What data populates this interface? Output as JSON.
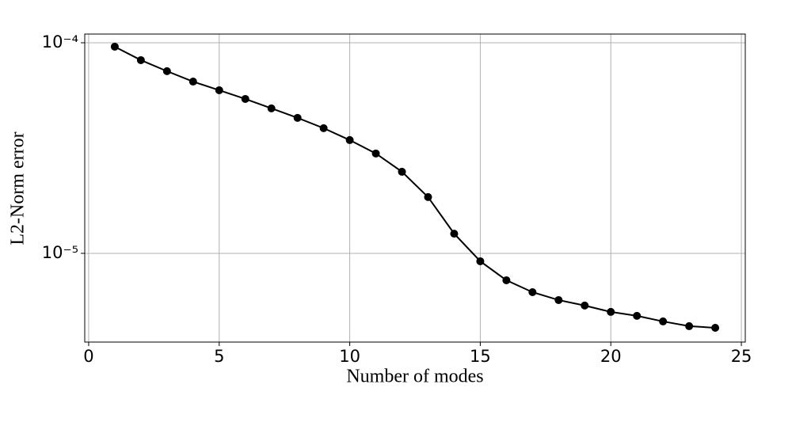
{
  "chart_data": {
    "type": "line",
    "xlabel": "Number of modes",
    "ylabel": "L2-Norm error",
    "x": [
      1,
      2,
      3,
      4,
      5,
      6,
      7,
      8,
      9,
      10,
      11,
      12,
      13,
      14,
      15,
      16,
      17,
      18,
      19,
      20,
      21,
      22,
      23,
      24
    ],
    "series": [
      {
        "color": "#000000",
        "values": [
          9.58e-05,
          8.27e-05,
          7.33e-05,
          6.54e-05,
          5.95e-05,
          5.41e-05,
          4.88e-05,
          4.4e-05,
          3.93e-05,
          3.45e-05,
          2.98e-05,
          2.44e-05,
          1.85e-05,
          1.24e-05,
          9.17e-06,
          7.45e-06,
          6.54e-06,
          6e-06,
          5.65e-06,
          5.27e-06,
          5.05e-06,
          4.75e-06,
          4.51e-06,
          4.43e-06
        ]
      }
    ],
    "xlim": [
      -0.15,
      25.15
    ],
    "xticks": [
      0,
      5,
      10,
      15,
      20,
      25
    ],
    "ylim": [
      3.79e-06,
      0.00011
    ],
    "yticks": [
      {
        "value": 1e-05,
        "label": "10⁻⁵"
      },
      {
        "value": 0.0001,
        "label": "10⁻⁴"
      }
    ],
    "ylog": true,
    "grid": true
  }
}
